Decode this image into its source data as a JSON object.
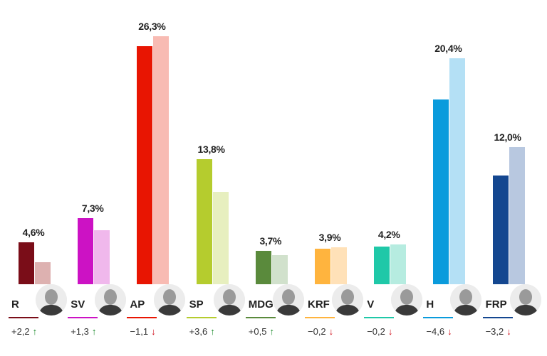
{
  "chart_data": {
    "type": "bar",
    "ylim": [
      0,
      30
    ],
    "series": [
      {
        "values": [
          4.6,
          7.3,
          26.3,
          13.8,
          3.7,
          3.9,
          4.2,
          20.4,
          12.0
        ]
      },
      {
        "values": [
          2.4,
          6.0,
          27.4,
          10.2,
          3.2,
          4.1,
          4.4,
          25.0,
          15.2
        ]
      }
    ],
    "parties": [
      {
        "abbr": "R",
        "value_label": "4,6%",
        "change": "+2,2",
        "direction": "up",
        "color": "#7a0d18",
        "light": "#ddb1b0"
      },
      {
        "abbr": "SV",
        "value_label": "7,3%",
        "change": "+1,3",
        "direction": "up",
        "color": "#cc12c4",
        "light": "#f0b8ec"
      },
      {
        "abbr": "AP",
        "value_label": "26,3%",
        "change": "−1,1",
        "direction": "down",
        "color": "#e81502",
        "light": "#f8bbb3"
      },
      {
        "abbr": "SP",
        "value_label": "13,8%",
        "change": "+3,6",
        "direction": "up",
        "color": "#b5cc2e",
        "light": "#e7efbf"
      },
      {
        "abbr": "MDG",
        "value_label": "3,7%",
        "change": "+0,5",
        "direction": "up",
        "color": "#5a8a3c",
        "light": "#d1e1cc"
      },
      {
        "abbr": "KRF",
        "value_label": "3,9%",
        "change": "−0,2",
        "direction": "down",
        "color": "#ffb43e",
        "light": "#ffe1b8"
      },
      {
        "abbr": "V",
        "value_label": "4,2%",
        "change": "−0,2",
        "direction": "down",
        "color": "#1fc8a8",
        "light": "#b6ece0"
      },
      {
        "abbr": "H",
        "value_label": "20,4%",
        "change": "−4,6",
        "direction": "down",
        "color": "#0a9bdc",
        "light": "#b4e0f5"
      },
      {
        "abbr": "FRP",
        "value_label": "12,0%",
        "change": "−3,2",
        "direction": "down",
        "color": "#144790",
        "light": "#b8c8e0"
      }
    ],
    "up_arrow": "↑",
    "down_arrow": "↓",
    "up_color": "#1a8a2a",
    "down_color": "#d0101c"
  }
}
